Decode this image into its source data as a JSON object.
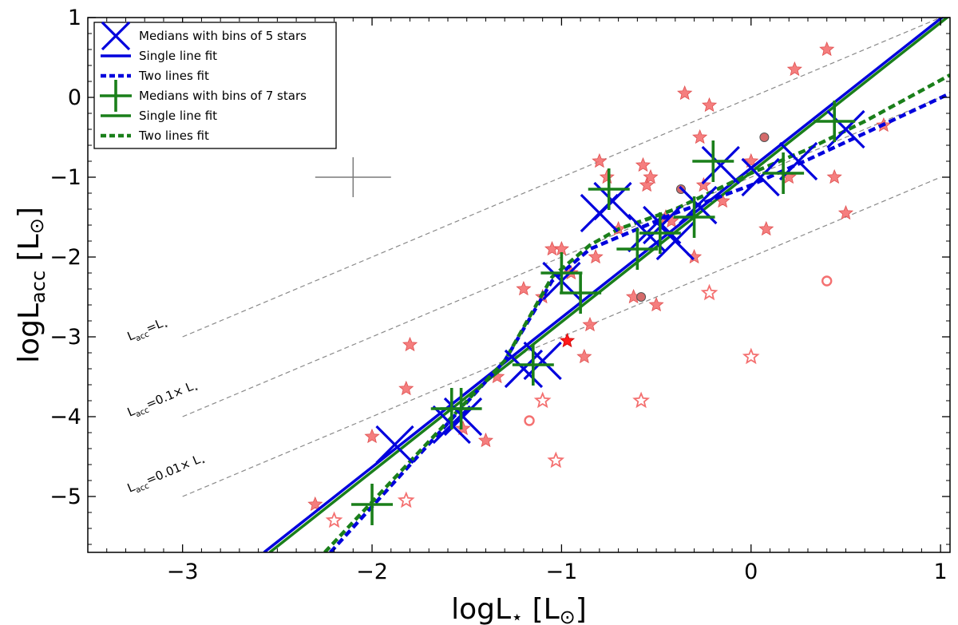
{
  "chart_data": {
    "type": "scatter",
    "xlabel_main": "logL",
    "xlabel_sub": "⋆",
    "xlabel_unit": " [L",
    "xlabel_sun": "⊙",
    "xlabel_close": "]",
    "ylabel_main": "logL",
    "ylabel_sub": "acc",
    "ylabel_unit": " [L",
    "ylabel_sun": "⊙",
    "ylabel_close": "]",
    "xlim": [
      -3.5,
      1.05
    ],
    "ylim": [
      -5.7,
      1.0
    ],
    "xticks": [
      -3,
      -2,
      -1,
      0,
      1
    ],
    "yticks": [
      -5,
      -4,
      -3,
      -2,
      -1,
      0,
      1
    ],
    "xtick_labels": [
      "−3",
      "−2",
      "−1",
      "0",
      "1"
    ],
    "ytick_labels": [
      "−5",
      "−4",
      "−3",
      "−2",
      "−1",
      "0",
      "1"
    ],
    "colors": {
      "blue": "#0000dd",
      "green": "#1a7f1a",
      "star_fill": "#f47070",
      "star_edge": "#e05050",
      "reference": "#8a8a8a",
      "error_bar": "#7a7a7a"
    },
    "legend": {
      "position": "top-left",
      "entries": [
        {
          "label": "Medians with bins of 5 stars",
          "marker": "x",
          "color": "#0000dd"
        },
        {
          "label": "Single line fit",
          "marker": "solid",
          "color": "#0000dd"
        },
        {
          "label": "Two lines fit",
          "marker": "dashed",
          "color": "#0000dd"
        },
        {
          "label": "Medians with bins of 7 stars",
          "marker": "plus",
          "color": "#1a7f1a"
        },
        {
          "label": "Single line fit",
          "marker": "solid",
          "color": "#1a7f1a"
        },
        {
          "label": "Two lines fit",
          "marker": "dashed",
          "color": "#1a7f1a"
        }
      ]
    },
    "reference_lines": [
      {
        "offset": 0,
        "x_range": [
          -3,
          1
        ],
        "label_main": "L",
        "label_sub": "acc",
        "label_rest": "=L",
        "label_star": "⋆",
        "label_factor": "",
        "label_pos": [
          -3.28,
          -3.05
        ]
      },
      {
        "offset": -1,
        "x_range": [
          -3,
          1
        ],
        "label_main": "L",
        "label_sub": "acc",
        "label_rest": "=0.1× L",
        "label_star": "⋆",
        "label_factor": "",
        "label_pos": [
          -3.28,
          -4.0
        ]
      },
      {
        "offset": -2,
        "x_range": [
          -3,
          1
        ],
        "label_main": "L",
        "label_sub": "acc",
        "label_rest": "=0.01× L",
        "label_star": "⋆",
        "label_factor": "",
        "label_pos": [
          -3.28,
          -4.95
        ]
      }
    ],
    "typical_error": {
      "x": -2.1,
      "y": -1.0,
      "dx": 0.2,
      "dy": 0.25
    },
    "series": [
      {
        "name": "Single line fit (5 stars)",
        "kind": "line",
        "style": "solid",
        "color": "#0000dd",
        "x": [
          -2.57,
          1.05
        ],
        "y": [
          -5.7,
          1.08
        ]
      },
      {
        "name": "Single line fit (7 stars)",
        "kind": "line",
        "style": "solid",
        "color": "#1a7f1a",
        "x": [
          -2.54,
          1.05
        ],
        "y": [
          -5.7,
          1.03
        ]
      },
      {
        "name": "Two lines fit (5 stars)",
        "kind": "line",
        "style": "dashed",
        "color": "#0000dd",
        "x": [
          -2.22,
          -1.3,
          -1.05,
          -0.85,
          -0.7,
          -0.4,
          0.0,
          0.3,
          0.6,
          1.05
        ],
        "y": [
          -5.7,
          -3.3,
          -2.3,
          -1.9,
          -1.75,
          -1.45,
          -1.1,
          -0.78,
          -0.45,
          0.05
        ]
      },
      {
        "name": "Two lines fit (7 stars)",
        "kind": "line",
        "style": "dashed",
        "color": "#1a7f1a",
        "x": [
          -2.25,
          -1.3,
          -1.05,
          -0.85,
          -0.7,
          -0.4,
          0.0,
          0.3,
          0.6,
          1.05
        ],
        "y": [
          -5.7,
          -3.3,
          -2.25,
          -1.85,
          -1.65,
          -1.4,
          -0.95,
          -0.65,
          -0.3,
          0.28
        ]
      },
      {
        "name": "Medians with bins of 5 stars",
        "kind": "x-marker",
        "color": "#0000dd",
        "x": [
          -1.88,
          -1.58,
          -1.52,
          -1.2,
          -1.1,
          -1.0,
          -0.8,
          -0.73,
          -0.55,
          -0.47,
          -0.4,
          -0.28,
          -0.16,
          0.05,
          0.25,
          0.5
        ],
        "y": [
          -4.35,
          -4.1,
          -4.0,
          -3.4,
          -3.3,
          -2.3,
          -1.45,
          -1.3,
          -1.7,
          -1.6,
          -1.8,
          -1.35,
          -0.85,
          -1.0,
          -0.8,
          -0.4
        ]
      },
      {
        "name": "Medians with bins of 7 stars",
        "kind": "plus-marker",
        "color": "#1a7f1a",
        "x": [
          -2.0,
          -1.58,
          -1.53,
          -1.15,
          -1.0,
          -0.9,
          -0.75,
          -0.6,
          -0.48,
          -0.3,
          -0.2,
          0.17,
          0.44
        ],
        "y": [
          -5.1,
          -3.9,
          -3.9,
          -3.35,
          -2.2,
          -2.45,
          -1.15,
          -1.9,
          -1.7,
          -1.5,
          -0.8,
          -0.95,
          -0.3
        ]
      },
      {
        "name": "Filled stars",
        "kind": "star-filled",
        "x": [
          -2.3,
          -2.0,
          -1.82,
          -1.8,
          -1.52,
          -1.4,
          -1.34,
          -1.2,
          -1.1,
          -1.05,
          -1.0,
          -0.95,
          -0.88,
          -0.85,
          -0.82,
          -0.8,
          -0.76,
          -0.7,
          -0.62,
          -0.57,
          -0.55,
          -0.53,
          -0.5,
          -0.45,
          -0.42,
          -0.35,
          -0.3,
          -0.27,
          -0.25,
          -0.22,
          -0.15,
          0.0,
          0.08,
          0.2,
          0.23,
          0.4,
          0.44,
          0.5,
          0.7
        ],
        "y": [
          -5.1,
          -4.25,
          -3.65,
          -3.1,
          -4.15,
          -4.3,
          -3.5,
          -2.4,
          -2.5,
          -1.9,
          -1.9,
          -2.2,
          -3.25,
          -2.85,
          -2.0,
          -0.8,
          -1.0,
          -1.65,
          -2.5,
          -0.85,
          -1.1,
          -1.0,
          -2.6,
          -1.5,
          -1.55,
          0.05,
          -2.0,
          -0.5,
          -1.1,
          -0.1,
          -1.3,
          -0.8,
          -1.65,
          -1.0,
          0.35,
          0.6,
          -1.0,
          -1.45,
          -0.35
        ]
      },
      {
        "name": "Filled star (bright)",
        "kind": "star-bright",
        "x": [
          -0.97
        ],
        "y": [
          -3.05
        ]
      },
      {
        "name": "Open stars",
        "kind": "star-open",
        "x": [
          -2.2,
          -1.82,
          -1.1,
          -1.03,
          -0.58,
          -0.22,
          0.0
        ],
        "y": [
          -5.3,
          -5.05,
          -3.8,
          -4.55,
          -3.8,
          -2.45,
          -3.25
        ]
      },
      {
        "name": "Filled circles",
        "kind": "circle-filled",
        "x": [
          -0.58,
          -0.37,
          0.07
        ],
        "y": [
          -2.5,
          -1.15,
          -0.5
        ]
      },
      {
        "name": "Open circles",
        "kind": "circle-open",
        "x": [
          -1.17,
          0.4
        ],
        "y": [
          -4.05,
          -2.3
        ]
      }
    ]
  }
}
